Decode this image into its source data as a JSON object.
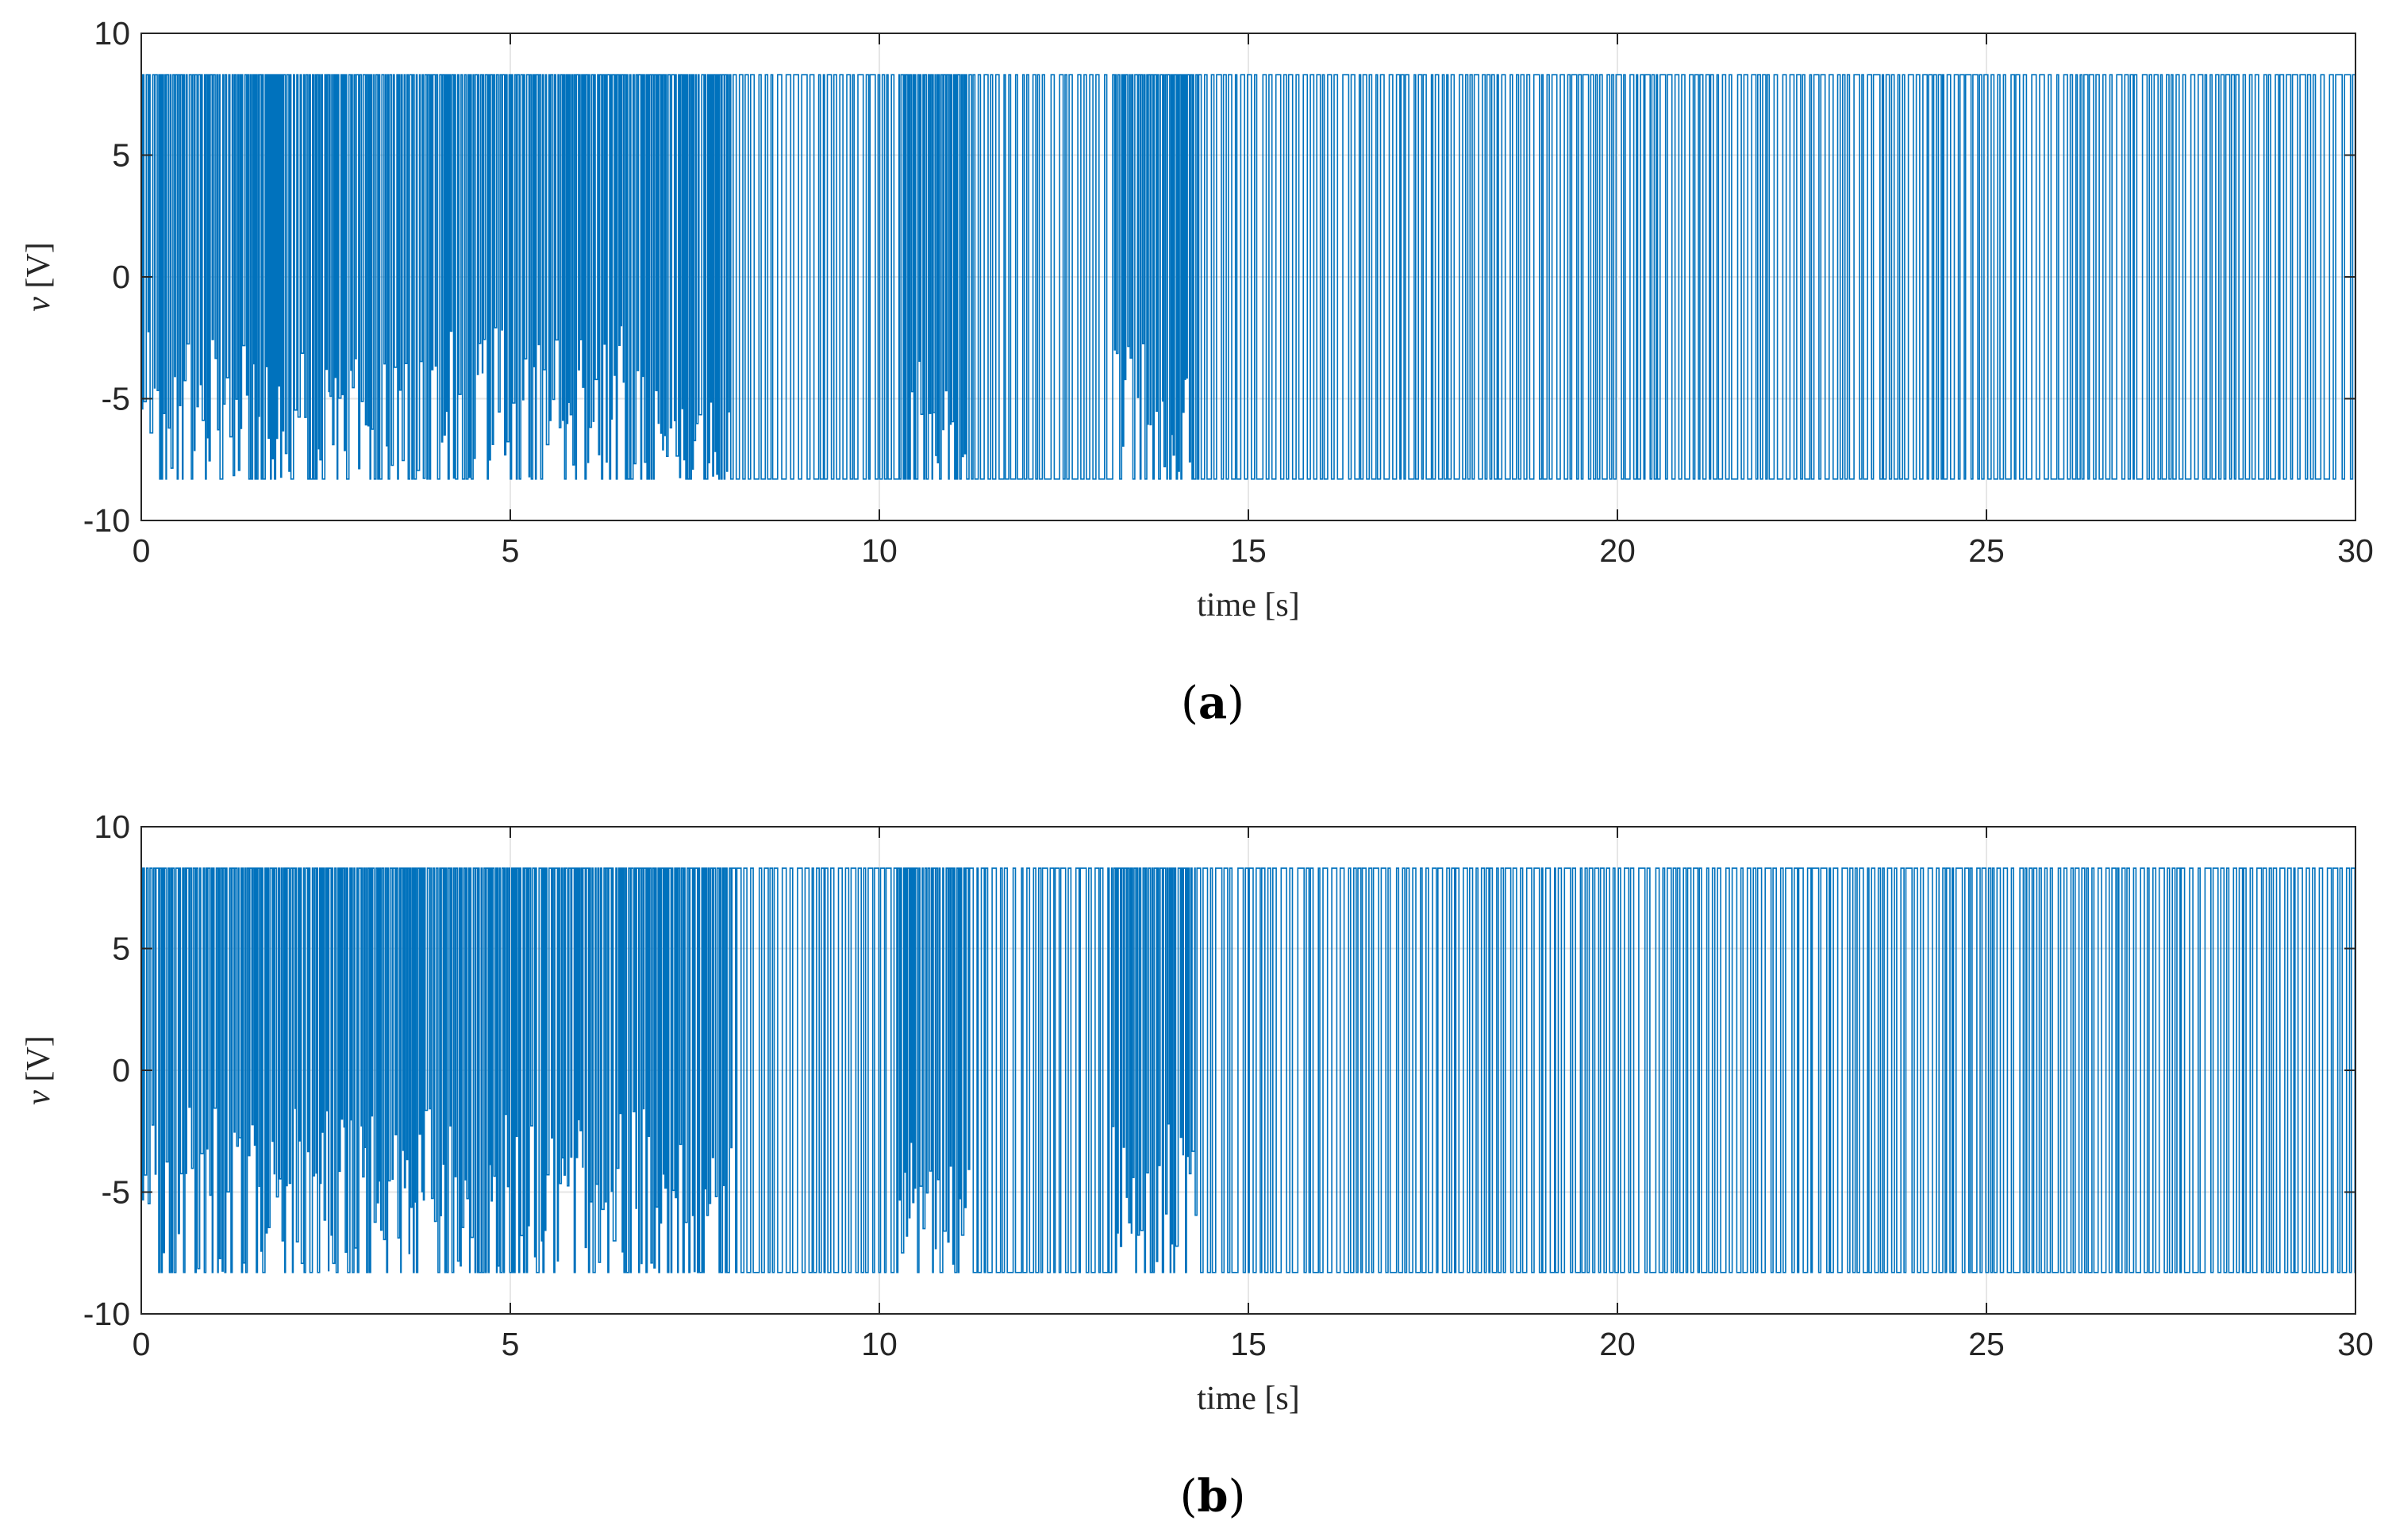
{
  "chart_data": [
    {
      "type": "line",
      "panel_label": "(a)",
      "panel_label_parts": [
        "(",
        "a",
        ")"
      ],
      "xlabel": "time [s]",
      "ylabel_var": "v",
      "ylabel_unit": "[V]",
      "xlim": [
        0,
        30
      ],
      "ylim": [
        -10,
        10
      ],
      "xticks": [
        0,
        5,
        10,
        15,
        20,
        25,
        30
      ],
      "yticks": [
        -10,
        -5,
        0,
        5,
        10
      ],
      "grid": true,
      "series_color": "#0072BD",
      "series": [
        {
          "name": "v",
          "y_max": 8.3,
          "y_min": -8.3,
          "description_segments": [
            {
              "t0": 0.0,
              "t1": 7.0,
              "lower_envelope": -2.0
            },
            {
              "t0": 7.0,
              "t1": 8.0,
              "lower_envelope": -5.0
            },
            {
              "t0": 8.0,
              "t1": 10.2,
              "lower_envelope": -8.3
            },
            {
              "t0": 10.2,
              "t1": 11.2,
              "lower_envelope": -3.0
            },
            {
              "t0": 11.2,
              "t1": 13.1,
              "lower_envelope": -8.3
            },
            {
              "t0": 13.1,
              "t1": 14.3,
              "lower_envelope": -2.5
            },
            {
              "t0": 14.3,
              "t1": 30.0,
              "lower_envelope": -8.3
            }
          ]
        }
      ]
    },
    {
      "type": "line",
      "panel_label": "(b)",
      "panel_label_parts": [
        "(",
        "b",
        ")"
      ],
      "xlabel": "time [s]",
      "ylabel_var": "v",
      "ylabel_unit": "[V]",
      "xlim": [
        0,
        30
      ],
      "ylim": [
        -10,
        10
      ],
      "xticks": [
        0,
        5,
        10,
        15,
        20,
        25,
        30
      ],
      "yticks": [
        -10,
        -5,
        0,
        5,
        10
      ],
      "grid": true,
      "series_color": "#0072BD",
      "series": [
        {
          "name": "v",
          "y_max": 8.3,
          "y_min": -8.3,
          "description_segments": [
            {
              "t0": 0.0,
              "t1": 7.0,
              "lower_envelope": -1.5
            },
            {
              "t0": 7.0,
              "t1": 8.0,
              "lower_envelope": -3.0
            },
            {
              "t0": 8.0,
              "t1": 10.2,
              "lower_envelope": -8.3
            },
            {
              "t0": 10.2,
              "t1": 11.2,
              "lower_envelope": -2.5
            },
            {
              "t0": 11.2,
              "t1": 13.1,
              "lower_envelope": -8.3
            },
            {
              "t0": 13.1,
              "t1": 14.3,
              "lower_envelope": -2.0
            },
            {
              "t0": 14.3,
              "t1": 30.0,
              "lower_envelope": -8.3
            }
          ]
        }
      ]
    }
  ]
}
